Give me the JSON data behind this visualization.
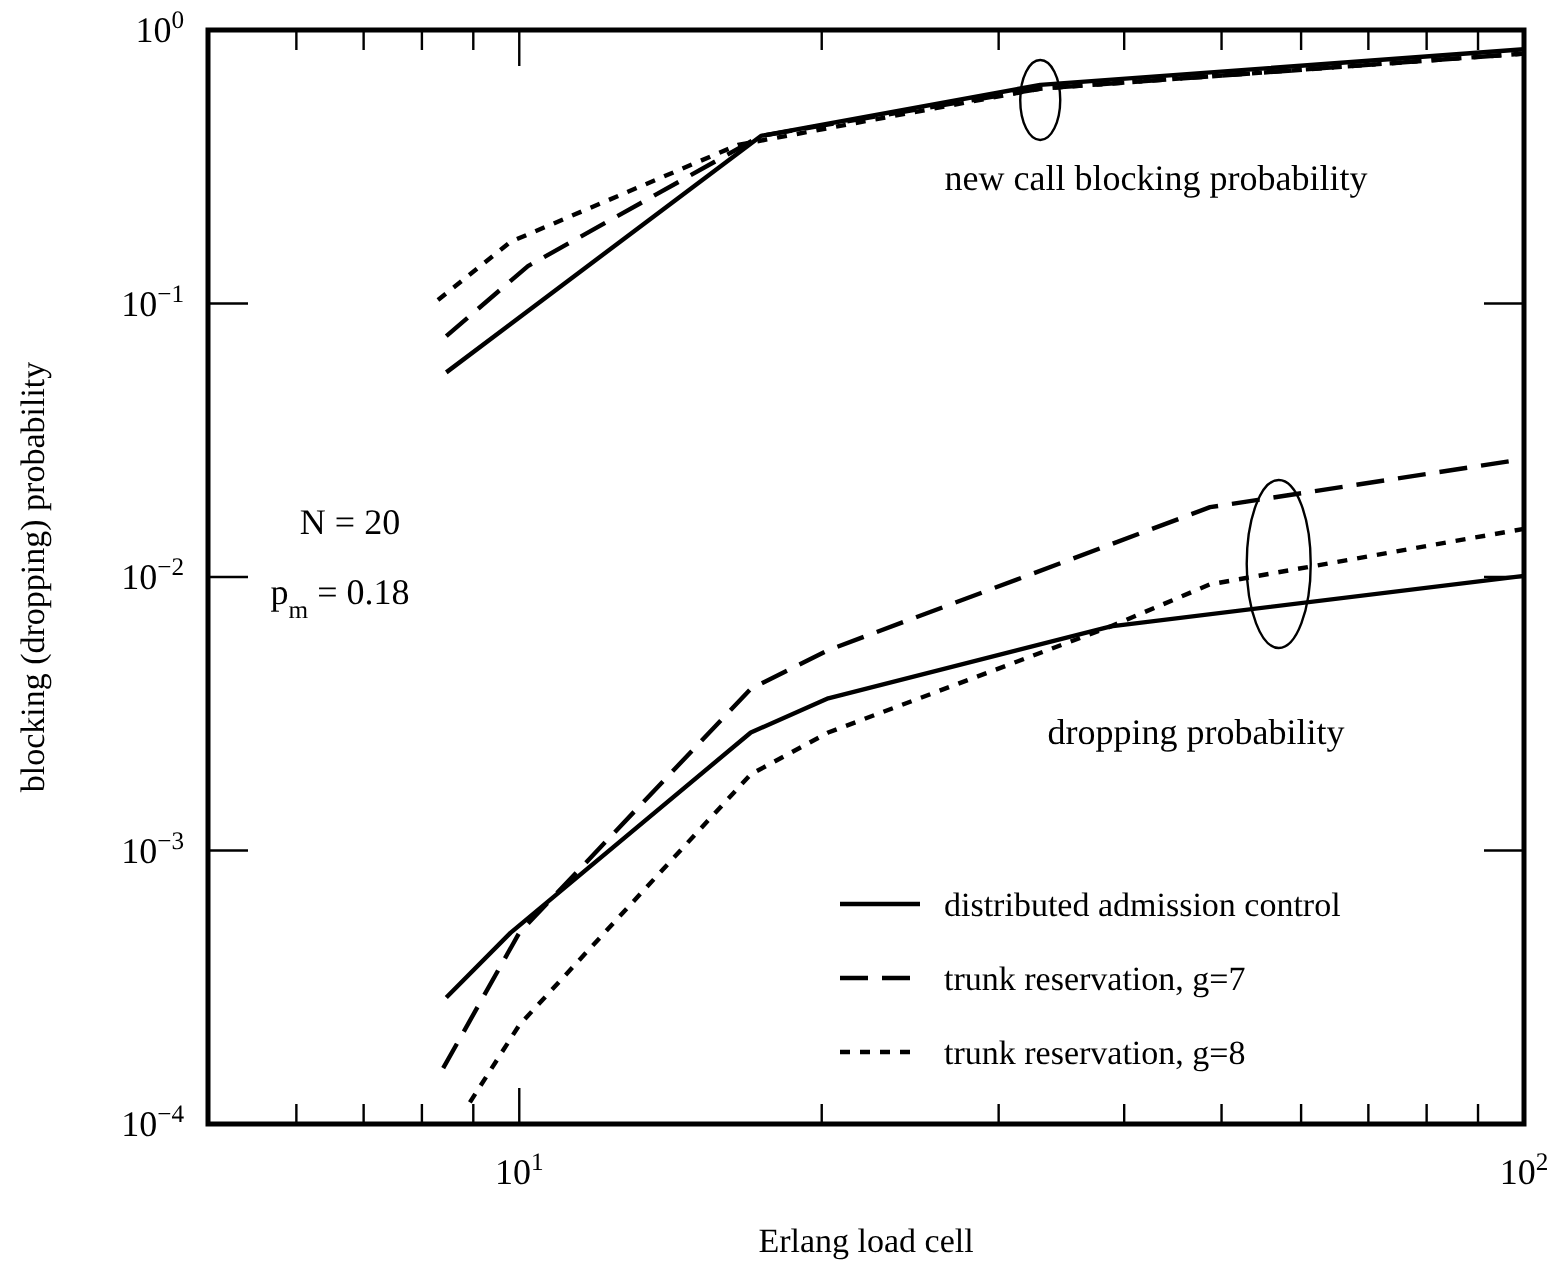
{
  "chart_data": {
    "type": "line",
    "xlabel": "Erlang load cell",
    "ylabel": "blocking (dropping) probability",
    "log": "xy",
    "xlim": [
      4.9,
      100
    ],
    "ylim": [
      0.0001,
      1
    ],
    "xticks": [
      {
        "value": 6,
        "label": null
      },
      {
        "value": 7,
        "label": null
      },
      {
        "value": 8,
        "label": null
      },
      {
        "value": 9,
        "label": null
      },
      {
        "value": 10,
        "label": "10$^{1}$"
      },
      {
        "value": 20,
        "label": null
      },
      {
        "value": 30,
        "label": null
      },
      {
        "value": 40,
        "label": null
      },
      {
        "value": 50,
        "label": null
      },
      {
        "value": 60,
        "label": null
      },
      {
        "value": 70,
        "label": null
      },
      {
        "value": 80,
        "label": null
      },
      {
        "value": 90,
        "label": null
      },
      {
        "value": 100,
        "label": "10$^{2}$"
      }
    ],
    "yticks": [
      {
        "value": 0.0001,
        "label": "10$^{−4}$"
      },
      {
        "value": 0.001,
        "label": "10$^{−3}$"
      },
      {
        "value": 0.01,
        "label": "10$^{−2}$"
      },
      {
        "value": 0.1,
        "label": "10$^{−1}$"
      },
      {
        "value": 1,
        "label": "10$^{0}$"
      }
    ],
    "grid": false,
    "legend": "bottom right",
    "series": [
      {
        "name": "distributed admission control",
        "color": "#000000",
        "line_style": "solid",
        "x": [
          8.46,
          17.4,
          33,
          100
        ],
        "values": [
          0.056,
          0.41,
          0.63,
          0.85
        ]
      },
      {
        "name": "trunk reservation, g=7",
        "color": "#000000",
        "line_style": "dashed",
        "x": [
          8.46,
          10.2,
          17.4,
          33,
          100
        ],
        "values": [
          0.076,
          0.137,
          0.41,
          0.61,
          0.82
        ]
      },
      {
        "name": "trunk reservation, g=8",
        "color": "#000000",
        "line_style": "dotted",
        "x": [
          8.3,
          9.8,
          16.5,
          33,
          100
        ],
        "values": [
          0.103,
          0.168,
          0.38,
          0.61,
          0.82
        ]
      },
      {
        "color": "#000000",
        "line_style": "solid",
        "x": [
          8.46,
          9.8,
          17,
          20.3,
          38.8,
          100
        ],
        "values": [
          0.00029,
          0.0005,
          0.0027,
          0.0036,
          0.0066,
          0.0101
        ]
      },
      {
        "color": "#000000",
        "line_style": "dashed",
        "x": [
          8.4,
          10,
          17,
          20.3,
          48.7,
          100
        ],
        "values": [
          0.00016,
          0.0005,
          0.0039,
          0.0054,
          0.018,
          0.027
        ]
      },
      {
        "color": "#000000",
        "line_style": "dotted",
        "x": [
          8.93,
          10,
          17,
          20.3,
          38.8,
          48.7,
          100
        ],
        "values": [
          0.00012,
          0.00023,
          0.0019,
          0.0027,
          0.0066,
          0.0094,
          0.015
        ]
      }
    ],
    "annotations": [
      "new call blocking probability",
      "dropping probability",
      "N = 20",
      "p$_{m}$ = 0.18"
    ]
  }
}
